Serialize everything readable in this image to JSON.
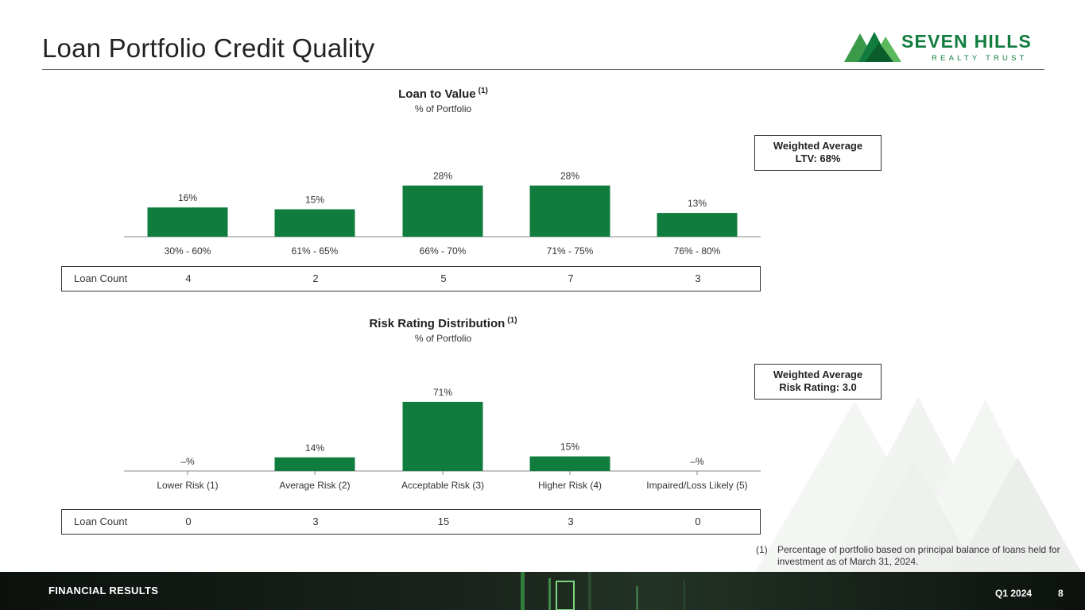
{
  "page": {
    "title": "Loan Portfolio Credit Quality"
  },
  "logo": {
    "name": "SEVEN HILLS",
    "subtitle": "REALTY TRUST"
  },
  "colors": {
    "bar": "#107C3D",
    "brand_green": "#107C3D",
    "footer_bg": "#111812"
  },
  "ltv": {
    "title": "Loan to Value",
    "title_note": "(1)",
    "subtitle": "% of Portfolio",
    "kpi_line1": "Weighted Average",
    "kpi_line2": "LTV: 68%",
    "count_label": "Loan Count",
    "counts": [
      "4",
      "2",
      "5",
      "7",
      "3"
    ]
  },
  "risk": {
    "title": "Risk Rating Distribution",
    "title_note": "(1)",
    "subtitle": "% of Portfolio",
    "kpi_line1": "Weighted Average",
    "kpi_line2": "Risk Rating: 3.0",
    "count_label": "Loan Count",
    "counts": [
      "0",
      "3",
      "15",
      "3",
      "0"
    ]
  },
  "chart_data": [
    {
      "type": "bar",
      "title": "Loan to Value (1)",
      "subtitle": "% of Portfolio",
      "categories": [
        "30% - 60%",
        "61% - 65%",
        "66% - 70%",
        "71% - 75%",
        "76% - 80%"
      ],
      "values": [
        16,
        15,
        28,
        28,
        13
      ],
      "value_labels": [
        "16%",
        "15%",
        "28%",
        "28%",
        "13%"
      ],
      "ylim": [
        0,
        30
      ],
      "grid": false,
      "xlabel": "",
      "ylabel": ""
    },
    {
      "type": "bar",
      "title": "Risk Rating Distribution (1)",
      "subtitle": "% of Portfolio",
      "categories": [
        "Lower Risk (1)",
        "Average Risk (2)",
        "Acceptable Risk (3)",
        "Higher Risk (4)",
        "Impaired/Loss Likely (5)"
      ],
      "values": [
        0,
        14,
        71,
        15,
        0
      ],
      "value_labels": [
        "–%",
        "14%",
        "71%",
        "15%",
        "–%"
      ],
      "ylim": [
        0,
        75
      ],
      "grid": false,
      "xlabel": "",
      "ylabel": ""
    }
  ],
  "footnote": {
    "number": "(1)",
    "text": "Percentage of portfolio based on principal balance of loans held for investment as of March 31, 2024."
  },
  "footer": {
    "section": "FINANCIAL RESULTS",
    "quarter": "Q1 2024",
    "page_number": "8"
  }
}
